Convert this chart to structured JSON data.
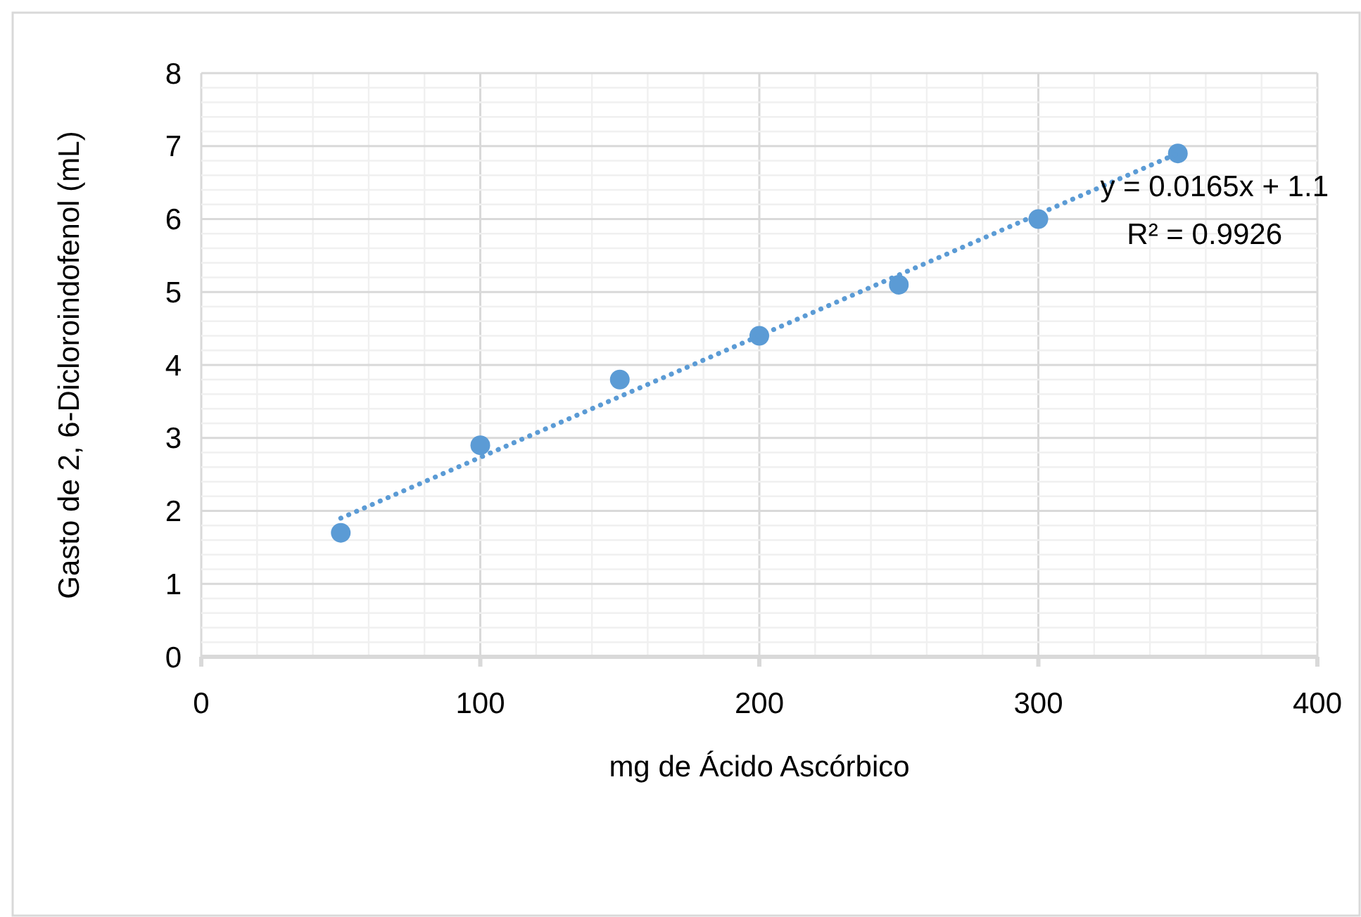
{
  "chart_data": {
    "type": "scatter",
    "xlabel": "mg de Ácido Ascórbico",
    "ylabel": "Gasto de 2, 6-Dicloroindofenol (mL)",
    "x": [
      50,
      100,
      150,
      200,
      250,
      300,
      350
    ],
    "series": [
      {
        "color": "#5b9bd5",
        "values": [
          1.7,
          2.9,
          3.8,
          4.4,
          5.1,
          6.0,
          6.9
        ],
        "marker": "circle"
      },
      {
        "type": "line",
        "color": "#5b9bd5",
        "x": [
          50,
          350
        ],
        "values": [
          1.9,
          6.9
        ],
        "line_style": "dotted",
        "marker": "none"
      }
    ],
    "xlim": [
      0,
      400
    ],
    "ylim": [
      0,
      8
    ],
    "xticks": [
      0,
      {
        "value": 20,
        "label": null
      },
      {
        "value": 40,
        "label": null
      },
      {
        "value": 60,
        "label": null
      },
      {
        "value": 80,
        "label": null
      },
      100,
      {
        "value": 120,
        "label": null
      },
      {
        "value": 140,
        "label": null
      },
      {
        "value": 160,
        "label": null
      },
      {
        "value": 180,
        "label": null
      },
      200,
      {
        "value": 220,
        "label": null
      },
      {
        "value": 240,
        "label": null
      },
      {
        "value": 260,
        "label": null
      },
      {
        "value": 280,
        "label": null
      },
      300,
      {
        "value": 320,
        "label": null
      },
      {
        "value": 340,
        "label": null
      },
      {
        "value": 360,
        "label": null
      },
      {
        "value": 380,
        "label": null
      },
      400
    ],
    "yticks": [
      0,
      {
        "value": 0.2,
        "label": null
      },
      {
        "value": 0.4,
        "label": null
      },
      {
        "value": 0.6,
        "label": null
      },
      {
        "value": 0.8,
        "label": null
      },
      1,
      {
        "value": 1.2,
        "label": null
      },
      {
        "value": 1.4,
        "label": null
      },
      {
        "value": 1.6,
        "label": null
      },
      {
        "value": 1.8,
        "label": null
      },
      2,
      {
        "value": 2.2,
        "label": null
      },
      {
        "value": 2.4,
        "label": null
      },
      {
        "value": 2.6,
        "label": null
      },
      {
        "value": 2.8,
        "label": null
      },
      3,
      {
        "value": 3.2,
        "label": null
      },
      {
        "value": 3.4,
        "label": null
      },
      {
        "value": 3.6,
        "label": null
      },
      {
        "value": 3.8,
        "label": null
      },
      4,
      {
        "value": 4.2,
        "label": null
      },
      {
        "value": 4.4,
        "label": null
      },
      {
        "value": 4.6,
        "label": null
      },
      {
        "value": 4.8,
        "label": null
      },
      5,
      {
        "value": 5.2,
        "label": null
      },
      {
        "value": 5.4,
        "label": null
      },
      {
        "value": 5.6,
        "label": null
      },
      {
        "value": 5.8,
        "label": null
      },
      6,
      {
        "value": 6.2,
        "label": null
      },
      {
        "value": 6.4,
        "label": null
      },
      {
        "value": 6.6,
        "label": null
      },
      {
        "value": 6.8,
        "label": null
      },
      7,
      {
        "value": 7.2,
        "label": null
      },
      {
        "value": 7.4,
        "label": null
      },
      {
        "value": 7.6,
        "label": null
      },
      {
        "value": 7.8,
        "label": null
      },
      8
    ],
    "grid": true,
    "annotations": [
      "y = 0.0165x + 1.1",
      "R² = 0.9926"
    ]
  }
}
